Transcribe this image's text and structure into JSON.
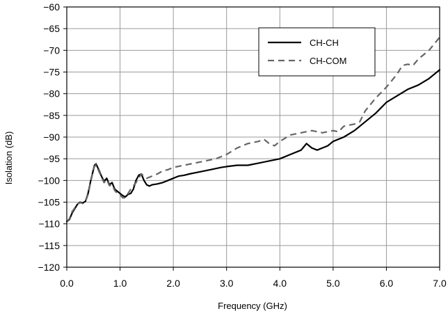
{
  "chart_data": {
    "type": "line",
    "title": "",
    "xlabel": "Frequency (GHz)",
    "ylabel": "Isolation (dB)",
    "xlim": [
      0,
      7
    ],
    "ylim": [
      -120,
      -60
    ],
    "grid": true,
    "legend_position": "top-right",
    "x_ticks": [
      "0.0",
      "1.0",
      "2.0",
      "3.0",
      "4.0",
      "5.0",
      "6.0",
      "7.0"
    ],
    "y_ticks": [
      "−60",
      "−65",
      "−70",
      "−75",
      "−80",
      "−85",
      "−90",
      "−95",
      "−100",
      "−105",
      "−110",
      "−115",
      "−120"
    ],
    "series": [
      {
        "name": "CH-CH",
        "color": "#000000",
        "style": "solid",
        "points": [
          [
            0.0,
            -109.5
          ],
          [
            0.05,
            -109
          ],
          [
            0.1,
            -107.5
          ],
          [
            0.15,
            -106.5
          ],
          [
            0.2,
            -105.5
          ],
          [
            0.25,
            -105
          ],
          [
            0.3,
            -105.2
          ],
          [
            0.35,
            -104.8
          ],
          [
            0.4,
            -103
          ],
          [
            0.45,
            -100
          ],
          [
            0.5,
            -97.5
          ],
          [
            0.52,
            -96.5
          ],
          [
            0.55,
            -96.2
          ],
          [
            0.6,
            -97.5
          ],
          [
            0.65,
            -99
          ],
          [
            0.7,
            -100.2
          ],
          [
            0.75,
            -99.5
          ],
          [
            0.8,
            -101
          ],
          [
            0.85,
            -100.5
          ],
          [
            0.9,
            -102
          ],
          [
            0.95,
            -102.5
          ],
          [
            1.0,
            -103
          ],
          [
            1.05,
            -103.5
          ],
          [
            1.1,
            -103.8
          ],
          [
            1.15,
            -103.2
          ],
          [
            1.2,
            -103
          ],
          [
            1.25,
            -102
          ],
          [
            1.3,
            -100
          ],
          [
            1.35,
            -98.8
          ],
          [
            1.4,
            -98.5
          ],
          [
            1.45,
            -100
          ],
          [
            1.5,
            -101
          ],
          [
            1.55,
            -101.3
          ],
          [
            1.6,
            -101
          ],
          [
            1.7,
            -100.8
          ],
          [
            1.8,
            -100.5
          ],
          [
            1.9,
            -100
          ],
          [
            2.0,
            -99.5
          ],
          [
            2.1,
            -99
          ],
          [
            2.2,
            -98.8
          ],
          [
            2.3,
            -98.5
          ],
          [
            2.5,
            -98
          ],
          [
            2.7,
            -97.5
          ],
          [
            2.9,
            -97
          ],
          [
            3.0,
            -96.8
          ],
          [
            3.2,
            -96.5
          ],
          [
            3.4,
            -96.5
          ],
          [
            3.6,
            -96
          ],
          [
            3.8,
            -95.5
          ],
          [
            4.0,
            -95
          ],
          [
            4.2,
            -94
          ],
          [
            4.4,
            -93
          ],
          [
            4.5,
            -91.5
          ],
          [
            4.6,
            -92.5
          ],
          [
            4.7,
            -93
          ],
          [
            4.8,
            -92.5
          ],
          [
            4.9,
            -92
          ],
          [
            5.0,
            -91
          ],
          [
            5.2,
            -90
          ],
          [
            5.4,
            -88.5
          ],
          [
            5.6,
            -86.5
          ],
          [
            5.8,
            -84.5
          ],
          [
            6.0,
            -82
          ],
          [
            6.2,
            -80.5
          ],
          [
            6.4,
            -79
          ],
          [
            6.6,
            -78
          ],
          [
            6.8,
            -76.5
          ],
          [
            7.0,
            -74.5
          ]
        ]
      },
      {
        "name": "CH-COM",
        "color": "#666666",
        "style": "dashed",
        "points": [
          [
            0.0,
            -109.5
          ],
          [
            0.05,
            -108.8
          ],
          [
            0.1,
            -107.2
          ],
          [
            0.15,
            -106.3
          ],
          [
            0.2,
            -105.5
          ],
          [
            0.25,
            -105.1
          ],
          [
            0.3,
            -105.3
          ],
          [
            0.35,
            -104.9
          ],
          [
            0.4,
            -103.2
          ],
          [
            0.45,
            -100.2
          ],
          [
            0.5,
            -97.6
          ],
          [
            0.52,
            -96.8
          ],
          [
            0.55,
            -96.4
          ],
          [
            0.6,
            -97.8
          ],
          [
            0.65,
            -99.2
          ],
          [
            0.7,
            -100.5
          ],
          [
            0.75,
            -99.8
          ],
          [
            0.8,
            -101.2
          ],
          [
            0.85,
            -101
          ],
          [
            0.9,
            -102.3
          ],
          [
            0.95,
            -103
          ],
          [
            1.0,
            -103.3
          ],
          [
            1.05,
            -104
          ],
          [
            1.1,
            -104
          ],
          [
            1.15,
            -103
          ],
          [
            1.2,
            -102
          ],
          [
            1.3,
            -100.5
          ],
          [
            1.4,
            -98.5
          ],
          [
            1.5,
            -99.5
          ],
          [
            1.6,
            -99
          ],
          [
            1.7,
            -98.5
          ],
          [
            1.8,
            -97.8
          ],
          [
            1.9,
            -97.5
          ],
          [
            2.0,
            -97
          ],
          [
            2.2,
            -96.5
          ],
          [
            2.4,
            -96
          ],
          [
            2.6,
            -95.5
          ],
          [
            2.8,
            -95
          ],
          [
            3.0,
            -94
          ],
          [
            3.2,
            -92.5
          ],
          [
            3.4,
            -91.5
          ],
          [
            3.6,
            -91
          ],
          [
            3.7,
            -90.5
          ],
          [
            3.8,
            -91.5
          ],
          [
            3.9,
            -92
          ],
          [
            4.0,
            -91
          ],
          [
            4.2,
            -89.5
          ],
          [
            4.4,
            -89
          ],
          [
            4.6,
            -88.5
          ],
          [
            4.8,
            -89
          ],
          [
            5.0,
            -88.5
          ],
          [
            5.1,
            -88.8
          ],
          [
            5.2,
            -87.5
          ],
          [
            5.4,
            -87
          ],
          [
            5.5,
            -86.5
          ],
          [
            5.6,
            -84
          ],
          [
            5.8,
            -81
          ],
          [
            6.0,
            -78.5
          ],
          [
            6.1,
            -77
          ],
          [
            6.2,
            -75.5
          ],
          [
            6.3,
            -73.5
          ],
          [
            6.4,
            -73.2
          ],
          [
            6.5,
            -73.5
          ],
          [
            6.6,
            -72
          ],
          [
            6.8,
            -70
          ],
          [
            7.0,
            -67
          ]
        ]
      }
    ]
  }
}
